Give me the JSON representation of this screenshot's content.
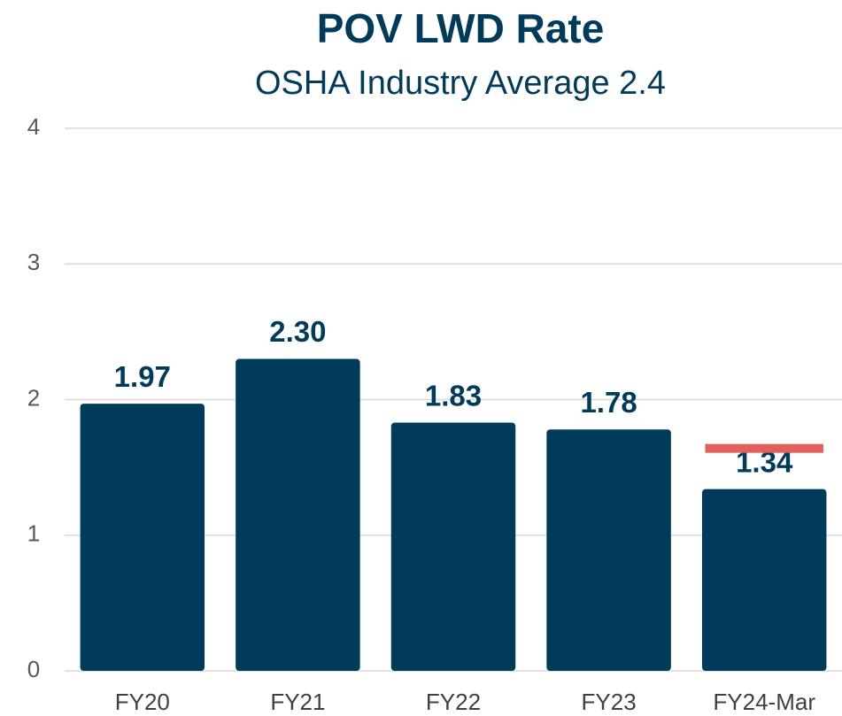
{
  "chart_data": {
    "type": "bar",
    "title": "POV LWD Rate",
    "subtitle": "OSHA Industry Average 2.4",
    "categories": [
      "FY20",
      "FY21",
      "FY22",
      "FY23",
      "FY24-Mar"
    ],
    "values": [
      1.97,
      2.3,
      1.83,
      1.78,
      1.34
    ],
    "value_labels": [
      "1.97",
      "2.30",
      "1.83",
      "1.78",
      "1.34"
    ],
    "color": "#003b5c",
    "markers": [
      null,
      null,
      null,
      null,
      1.64
    ],
    "marker_color": "#e0605a",
    "ylim": [
      0,
      4
    ],
    "yticks": [
      0,
      1,
      2,
      3,
      4
    ],
    "grid": true
  }
}
